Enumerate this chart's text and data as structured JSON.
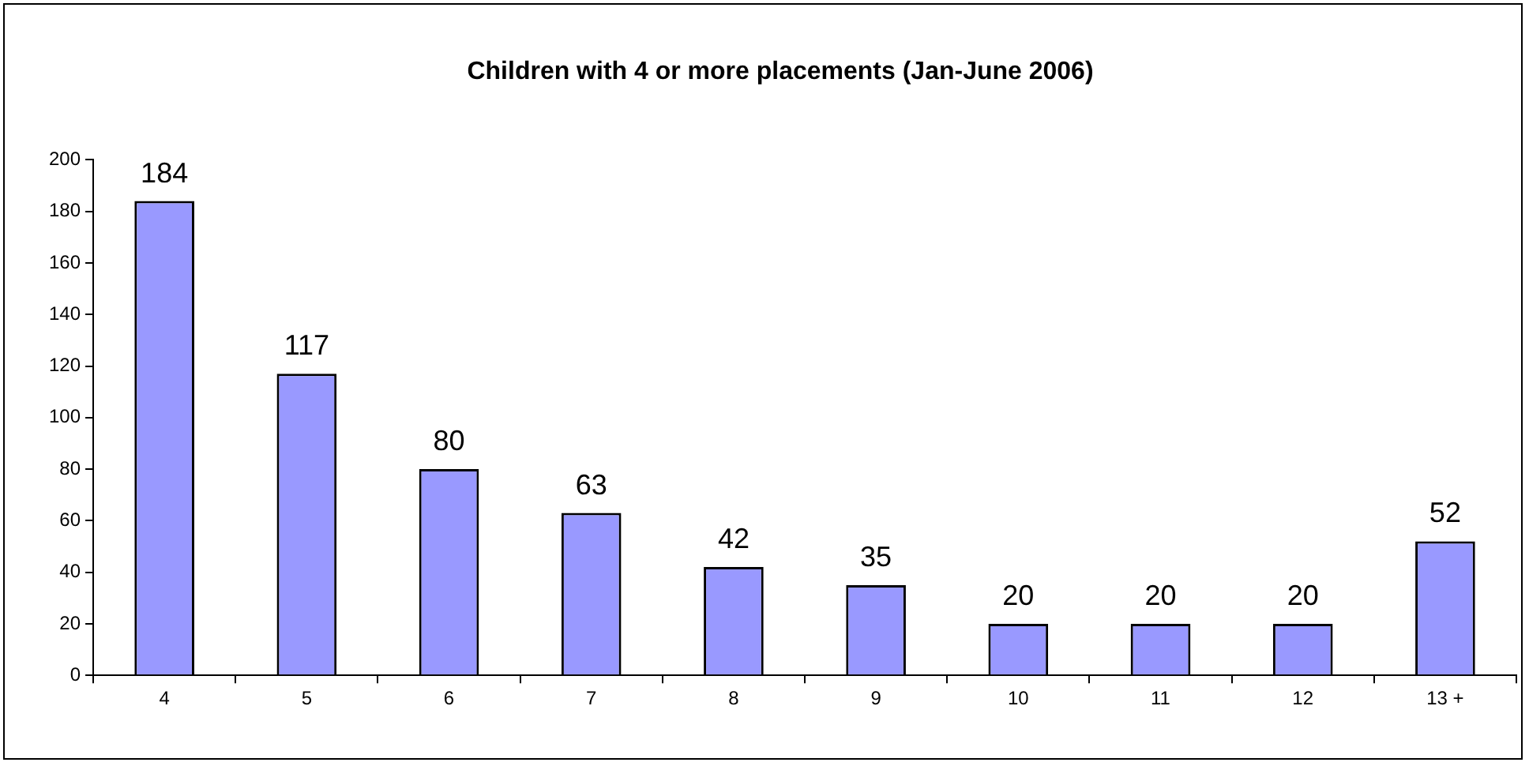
{
  "chart_data": {
    "type": "bar",
    "title": "Children with 4 or more placements (Jan-June 2006)",
    "categories": [
      "4",
      "5",
      "6",
      "7",
      "8",
      "9",
      "10",
      "11",
      "12",
      "13 +"
    ],
    "values": [
      184,
      117,
      80,
      63,
      42,
      35,
      20,
      20,
      20,
      52
    ],
    "color": "#9999ff",
    "ylim": [
      0,
      200
    ],
    "yticks": [
      0,
      20,
      40,
      60,
      80,
      100,
      120,
      140,
      160,
      180,
      200
    ],
    "grid": false,
    "legend": false,
    "data_labels": true
  }
}
